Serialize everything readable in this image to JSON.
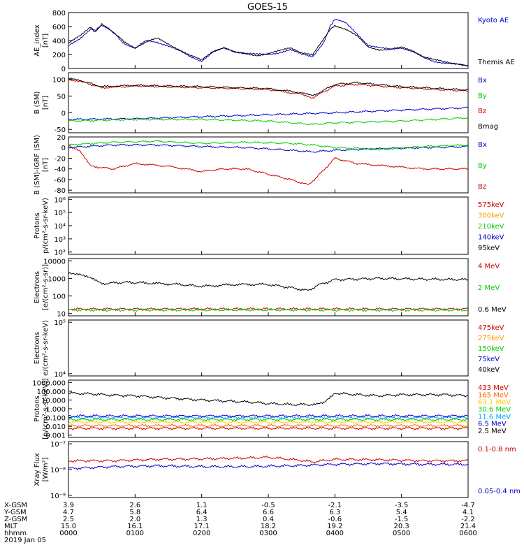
{
  "title": "GOES-15",
  "chart_data": [
    {
      "type": "line",
      "ylabel": "AE_index",
      "yunit": "[nT]",
      "yticks": [
        "800",
        "600",
        "400",
        "200",
        "0"
      ],
      "ylim": [
        0,
        800
      ],
      "series": [
        {
          "name": "Kyoto AE",
          "color": "#0000cc",
          "x": [
            0,
            5,
            10,
            12,
            15,
            18,
            21,
            25,
            30,
            35,
            40,
            45,
            50,
            55,
            60,
            65,
            70,
            75,
            80,
            85,
            90,
            95,
            100,
            105,
            110,
            115,
            118,
            120,
            125,
            130,
            135,
            140,
            145,
            150,
            155,
            160,
            165,
            170,
            175,
            180
          ],
          "y": [
            330,
            430,
            560,
            540,
            610,
            560,
            490,
            360,
            280,
            400,
            380,
            320,
            250,
            170,
            110,
            230,
            290,
            240,
            220,
            200,
            200,
            230,
            270,
            200,
            170,
            380,
            620,
            700,
            650,
            500,
            330,
            290,
            280,
            300,
            240,
            150,
            100,
            80,
            60,
            30
          ]
        },
        {
          "name": "Themis AE",
          "color": "#000000",
          "x": [
            0,
            5,
            10,
            12,
            15,
            18,
            21,
            25,
            30,
            35,
            40,
            45,
            50,
            55,
            60,
            65,
            70,
            75,
            80,
            85,
            90,
            95,
            100,
            105,
            110,
            115,
            118,
            120,
            125,
            130,
            135,
            140,
            145,
            150,
            155,
            160,
            165,
            170,
            175,
            180
          ],
          "y": [
            360,
            460,
            600,
            520,
            640,
            580,
            500,
            380,
            300,
            380,
            430,
            350,
            270,
            180,
            120,
            250,
            300,
            230,
            210,
            190,
            210,
            250,
            300,
            230,
            190,
            420,
            560,
            620,
            560,
            460,
            310,
            270,
            270,
            300,
            260,
            170,
            120,
            90,
            70,
            40
          ]
        }
      ]
    },
    {
      "type": "line",
      "ylabel": "B (SM)",
      "yunit": "[nT]",
      "yticks": [
        "100",
        "50",
        "0",
        "-50"
      ],
      "ylim": [
        -60,
        120
      ],
      "series": [
        {
          "name": "Bx",
          "color": "#0000cc",
          "x": [
            0,
            30,
            60,
            90,
            120,
            150,
            180
          ],
          "y": [
            -20,
            -18,
            -12,
            -6,
            0,
            8,
            15
          ]
        },
        {
          "name": "By",
          "color": "#00cc00",
          "x": [
            0,
            30,
            60,
            90,
            110,
            120,
            150,
            180
          ],
          "y": [
            -25,
            -20,
            -20,
            -25,
            -35,
            -30,
            -25,
            -15
          ]
        },
        {
          "name": "Bz",
          "color": "#cc0000",
          "x": [
            0,
            5,
            15,
            30,
            60,
            90,
            105,
            110,
            120,
            130,
            150,
            180
          ],
          "y": [
            100,
            95,
            75,
            80,
            75,
            70,
            55,
            45,
            80,
            85,
            75,
            65
          ]
        },
        {
          "name": "Bmag",
          "color": "#000000",
          "x": [
            0,
            5,
            15,
            30,
            60,
            90,
            105,
            110,
            120,
            130,
            150,
            180
          ],
          "y": [
            102,
            97,
            78,
            82,
            78,
            72,
            60,
            50,
            85,
            90,
            78,
            68
          ]
        }
      ]
    },
    {
      "type": "line",
      "ylabel": "B (SM)-IGRF (SM)",
      "yunit": "[nT]",
      "yticks": [
        "20",
        "0",
        "-20",
        "-40",
        "-60",
        "-80"
      ],
      "ylim": [
        -85,
        20
      ],
      "series": [
        {
          "name": "Bx",
          "color": "#0000cc",
          "x": [
            0,
            20,
            40,
            60,
            80,
            100,
            110,
            120,
            140,
            160,
            180
          ],
          "y": [
            0,
            5,
            5,
            2,
            0,
            -5,
            -8,
            -5,
            -2,
            0,
            2
          ]
        },
        {
          "name": "By",
          "color": "#00cc00",
          "x": [
            0,
            20,
            40,
            60,
            80,
            100,
            110,
            120,
            140,
            160,
            180
          ],
          "y": [
            5,
            10,
            12,
            8,
            10,
            8,
            5,
            0,
            -3,
            2,
            5
          ]
        },
        {
          "name": "Bz",
          "color": "#cc0000",
          "x": [
            0,
            5,
            10,
            20,
            30,
            45,
            60,
            70,
            80,
            90,
            100,
            108,
            112,
            120,
            130,
            145,
            160,
            180
          ],
          "y": [
            5,
            -5,
            -35,
            -40,
            -30,
            -35,
            -45,
            -40,
            -40,
            -50,
            -60,
            -70,
            -55,
            -20,
            -30,
            -35,
            -40,
            -40
          ]
        }
      ]
    },
    {
      "type": "line",
      "ylabel": "Protons",
      "yunit": "p/(cm²-s-sr-keV)",
      "yticks": [
        "10⁶",
        "10⁵",
        "10⁴",
        "10³",
        "10²"
      ],
      "scale": "log",
      "legend": [
        "575keV",
        "300keV",
        "210keV",
        "140keV",
        "95keV"
      ],
      "legend_colors": [
        "#cc0000",
        "#ff9900",
        "#00cc00",
        "#0000cc",
        "#000000"
      ],
      "series": []
    },
    {
      "type": "line",
      "ylabel": "Electrons",
      "yunit": "[e/(cm²-s-sr)]",
      "yticks": [
        "10000",
        "1000",
        "100",
        "10"
      ],
      "scale": "log",
      "series": [
        {
          "name": "4 MeV",
          "color": "#cc0000",
          "x": [
            0,
            180
          ],
          "y": [
            18,
            18
          ]
        },
        {
          "name": "2 MeV",
          "color": "#00cc00",
          "x": [
            0,
            180
          ],
          "y": [
            16,
            16
          ]
        },
        {
          "name": "0.6 MeV",
          "color": "#000000",
          "x": [
            0,
            5,
            10,
            15,
            25,
            35,
            50,
            60,
            75,
            90,
            100,
            108,
            112,
            120,
            140,
            160,
            180
          ],
          "y": [
            2200,
            1800,
            1000,
            500,
            600,
            550,
            450,
            350,
            450,
            450,
            300,
            200,
            400,
            850,
            1000,
            900,
            850
          ]
        }
      ]
    },
    {
      "type": "line",
      "ylabel": "Electrons",
      "yunit": "e/(cm²-s-sr-keV)",
      "yticks": [
        "10⁵",
        "10⁴"
      ],
      "scale": "log",
      "legend": [
        "475keV",
        "275keV",
        "150keV",
        "75keV",
        "40keV"
      ],
      "legend_colors": [
        "#cc0000",
        "#ff9900",
        "#00cc00",
        "#0000cc",
        "#000000"
      ],
      "series": []
    },
    {
      "type": "line",
      "ylabel": "Protons",
      "yunit": "[p/(cm²-s-sr-keV)]",
      "yticks": [
        "1000.000",
        "100.000",
        "10.000",
        "1.000",
        "0.100",
        "0.010",
        "0.001"
      ],
      "scale": "log",
      "series": [
        {
          "name": "433 MeV",
          "color": "#cc0000",
          "x": [
            0,
            180
          ],
          "y": [
            0.006,
            0.006
          ]
        },
        {
          "name": "165 MeV",
          "color": "#ff6600",
          "x": [
            0,
            180
          ],
          "y": [
            0.012,
            0.012
          ]
        },
        {
          "name": "63.1 MeV",
          "color": "#ffcc00",
          "x": [
            0,
            180
          ],
          "y": [
            0.03,
            0.03
          ]
        },
        {
          "name": "30.6 MeV",
          "color": "#00cc00",
          "x": [
            0,
            180
          ],
          "y": [
            0.06,
            0.06
          ]
        },
        {
          "name": "11.6 MeV",
          "color": "#00aaff",
          "x": [
            0,
            180
          ],
          "y": [
            0.1,
            0.1
          ]
        },
        {
          "name": "6.5 MeV",
          "color": "#0000cc",
          "x": [
            0,
            180
          ],
          "y": [
            0.15,
            0.15
          ]
        },
        {
          "name": "2.5 MeV",
          "color": "#000000",
          "x": [
            0,
            10,
            20,
            30,
            40,
            60,
            80,
            90,
            100,
            110,
            115,
            120,
            130,
            140,
            150,
            160,
            170,
            180
          ],
          "y": [
            60,
            50,
            35,
            30,
            20,
            10,
            6,
            4,
            3,
            3,
            4,
            60,
            40,
            30,
            40,
            40,
            40,
            30
          ]
        }
      ]
    },
    {
      "type": "line",
      "ylabel": "Xray Flux",
      "yunit": "[W/m²]",
      "yticks": [
        "10⁻⁷",
        "10⁻⁸",
        "10⁻⁹"
      ],
      "scale": "log",
      "series": [
        {
          "name": "0.1-0.8 nm",
          "color": "#cc0000",
          "x": [
            0,
            20,
            40,
            60,
            80,
            90,
            100,
            110,
            120,
            140,
            160,
            180
          ],
          "y": [
            2.2e-08,
            2.2e-08,
            2.5e-08,
            2.6e-08,
            2.8e-08,
            3e-08,
            2.5e-08,
            2e-08,
            2.5e-08,
            2.4e-08,
            2.2e-08,
            2.2e-08
          ]
        },
        {
          "name": "0.05-0.4 nm",
          "color": "#0000cc",
          "x": [
            0,
            20,
            40,
            60,
            80,
            100,
            120,
            140,
            160,
            180
          ],
          "y": [
            1.1e-08,
            1.3e-08,
            1.4e-08,
            1.3e-08,
            1.3e-08,
            1.4e-08,
            1.6e-08,
            1.7e-08,
            1.6e-08,
            1.6e-08
          ]
        }
      ]
    }
  ],
  "xaxis": {
    "labels": [
      "X-GSM",
      "Y-GSM",
      "Z-GSM",
      "MLT",
      "hhmm"
    ],
    "date": "2019 Jan 05",
    "columns": [
      {
        "vals": [
          "3.9",
          "4.7",
          "2.5",
          "15.0",
          "0000"
        ]
      },
      {
        "vals": [
          "2.6",
          "5.8",
          "2.0",
          "16.1",
          "0100"
        ]
      },
      {
        "vals": [
          "1.1",
          "6.4",
          "1.3",
          "17.1",
          "0200"
        ]
      },
      {
        "vals": [
          "-0.5",
          "6.6",
          "0.4",
          "18.2",
          "0300"
        ]
      },
      {
        "vals": [
          "-2.1",
          "6.3",
          "-0.6",
          "19.2",
          "0400"
        ]
      },
      {
        "vals": [
          "-3.5",
          "5.4",
          "-1.5",
          "20.3",
          "0500"
        ]
      },
      {
        "vals": [
          "-4.7",
          "4.1",
          "-2.2",
          "21.4",
          "0600"
        ]
      }
    ]
  }
}
